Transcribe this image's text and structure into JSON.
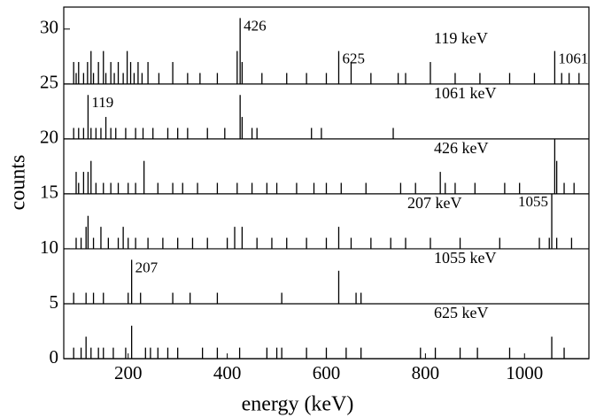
{
  "chart_data": {
    "type": "spectra",
    "x_label": "energy (keV)",
    "y_label": "counts",
    "xlim": [
      70,
      1130
    ],
    "ylim": [
      0,
      32
    ],
    "xticks": [
      200,
      400,
      600,
      800,
      1000
    ],
    "yticks": [
      0,
      5,
      10,
      15,
      20,
      25,
      30
    ],
    "color": "#000000",
    "series": [
      {
        "name": "119 keV",
        "base": 25,
        "x": [
          90,
          95,
          100,
          110,
          118,
          125,
          130,
          140,
          150,
          155,
          165,
          172,
          180,
          190,
          198,
          205,
          212,
          220,
          228,
          240,
          262,
          290,
          320,
          345,
          380,
          420,
          426,
          430,
          470,
          520,
          560,
          600,
          625,
          650,
          690,
          745,
          760,
          810,
          860,
          910,
          970,
          1020,
          1061,
          1075,
          1090,
          1110
        ],
        "values": [
          27,
          26,
          27,
          26,
          27,
          28,
          26,
          27,
          28,
          26,
          27,
          26,
          27,
          26,
          28,
          27,
          26,
          27,
          26,
          27,
          26,
          27,
          26,
          26,
          26,
          28,
          31,
          27,
          26,
          26,
          26,
          26,
          28,
          27,
          26,
          26,
          26,
          27,
          26,
          26,
          26,
          26,
          28,
          26,
          26,
          26
        ],
        "peaks": [
          {
            "label": "426",
            "x": 426
          },
          {
            "label": "625",
            "x": 625
          },
          {
            "label": "1061",
            "x": 1061
          }
        ]
      },
      {
        "name": "1061 keV",
        "base": 20,
        "x": [
          90,
          100,
          110,
          119,
          125,
          135,
          145,
          155,
          165,
          175,
          195,
          215,
          230,
          250,
          280,
          300,
          320,
          360,
          395,
          426,
          430,
          450,
          460,
          570,
          590,
          735
        ],
        "values": [
          21,
          21,
          21,
          24,
          21,
          21,
          21,
          22,
          21,
          21,
          21,
          21,
          21,
          21,
          21,
          21,
          21,
          21,
          21,
          24,
          22,
          21,
          21,
          21,
          21,
          21
        ],
        "peaks": [
          {
            "label": "119",
            "x": 119
          }
        ]
      },
      {
        "name": "426 keV",
        "base": 15,
        "x": [
          95,
          100,
          110,
          119,
          125,
          135,
          150,
          165,
          180,
          200,
          215,
          232,
          260,
          290,
          310,
          340,
          380,
          420,
          450,
          480,
          500,
          540,
          575,
          600,
          630,
          680,
          750,
          780,
          830,
          840,
          860,
          900,
          960,
          990,
          1061,
          1065,
          1080,
          1100
        ],
        "values": [
          17,
          16,
          17,
          17,
          18,
          16,
          16,
          16,
          16,
          16,
          16,
          18,
          16,
          16,
          16,
          16,
          16,
          16,
          16,
          16,
          16,
          16,
          16,
          16,
          16,
          16,
          16,
          16,
          17,
          16,
          16,
          16,
          16,
          16,
          20,
          18,
          16,
          16
        ],
        "peaks": []
      },
      {
        "name": "207 keV",
        "base": 10,
        "x": [
          95,
          105,
          115,
          119,
          130,
          145,
          160,
          180,
          190,
          200,
          215,
          240,
          270,
          300,
          330,
          360,
          400,
          415,
          430,
          460,
          490,
          520,
          560,
          600,
          625,
          650,
          690,
          730,
          760,
          810,
          870,
          950,
          1030,
          1050,
          1055,
          1065,
          1095
        ],
        "values": [
          11,
          11,
          12,
          13,
          11,
          12,
          11,
          11,
          12,
          11,
          11,
          11,
          11,
          11,
          11,
          11,
          11,
          12,
          12,
          11,
          11,
          11,
          11,
          11,
          12,
          11,
          11,
          11,
          11,
          11,
          11,
          11,
          11,
          11,
          15,
          11,
          11
        ],
        "peaks": [
          {
            "label": "1055",
            "x": 1055
          }
        ]
      },
      {
        "name": "1055 keV",
        "base": 5,
        "x": [
          90,
          115,
          130,
          150,
          200,
          207,
          225,
          290,
          325,
          380,
          510,
          625,
          660,
          670
        ],
        "values": [
          6,
          6,
          6,
          6,
          6,
          9,
          6,
          6,
          6,
          6,
          6,
          8,
          6,
          6
        ],
        "peaks": [
          {
            "label": "207",
            "x": 207
          }
        ]
      },
      {
        "name": "625 keV",
        "base": 0,
        "x": [
          90,
          105,
          115,
          125,
          140,
          150,
          170,
          195,
          207,
          235,
          245,
          260,
          280,
          300,
          350,
          380,
          425,
          480,
          500,
          510,
          560,
          600,
          640,
          670,
          790,
          820,
          870,
          905,
          970,
          1055,
          1080
        ],
        "values": [
          1,
          1,
          2,
          1,
          1,
          1,
          1,
          1,
          3,
          1,
          1,
          1,
          1,
          1,
          1,
          1,
          1,
          1,
          1,
          1,
          1,
          1,
          1,
          1,
          1,
          1,
          1,
          1,
          1,
          2,
          1
        ],
        "peaks": []
      }
    ]
  }
}
